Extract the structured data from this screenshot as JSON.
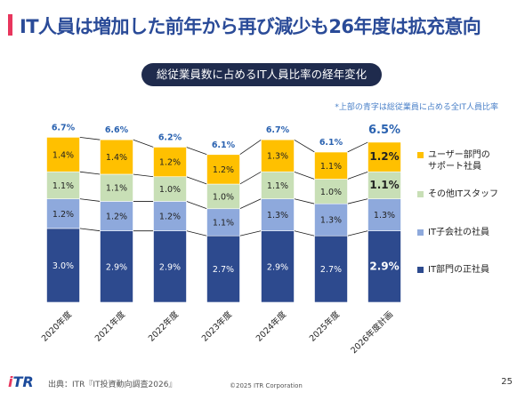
{
  "slide": {
    "title": "IT人員は増加した前年から再び減少も26年度は拡充意向",
    "subtitle": "総従業員数に占めるIT人員比率の経年変化",
    "note": "*上部の青字は総従業員に占める全IT人員比率",
    "footer": {
      "logo": "iTR",
      "source": "出典：ITR『IT投資動向調査2026』",
      "copyright": "©2025 ITR Corporation",
      "page": "25"
    }
  },
  "colors": {
    "accent": "#e8365d",
    "title": "#2a4b98",
    "total_label": "#2a62b0",
    "connector": "#1a1a1a"
  },
  "chart_data": {
    "type": "bar",
    "stacked": true,
    "categories": [
      "2020年度",
      "2021年度",
      "2022年度",
      "2023年度",
      "2024年度",
      "2025年度",
      "2026年度計画"
    ],
    "series": [
      {
        "name": "IT部門の正社員",
        "color": "#2d4a8e",
        "values": [
          3.0,
          2.9,
          2.9,
          2.7,
          2.9,
          2.7,
          2.9
        ],
        "labels": [
          "3.0%",
          "2.9%",
          "2.9%",
          "2.7%",
          "2.9%",
          "2.7%",
          "2.9%"
        ]
      },
      {
        "name": "IT子会社の社員",
        "color": "#8ea9dc",
        "values": [
          1.2,
          1.2,
          1.2,
          1.1,
          1.3,
          1.3,
          1.3
        ],
        "labels": [
          "1.2%",
          "1.2%",
          "1.2%",
          "1.1%",
          "1.3%",
          "1.3%",
          "1.3%"
        ]
      },
      {
        "name": "その他ITスタッフ",
        "color": "#c8dfb6",
        "values": [
          1.1,
          1.1,
          1.0,
          1.0,
          1.1,
          1.0,
          1.1
        ],
        "labels": [
          "1.1%",
          "1.1%",
          "1.0%",
          "1.0%",
          "1.1%",
          "1.0%",
          "1.1%"
        ]
      },
      {
        "name": "ユーザー部門の\nサポート社員",
        "color": "#ffc000",
        "values": [
          1.4,
          1.4,
          1.2,
          1.2,
          1.3,
          1.1,
          1.2
        ],
        "labels": [
          "1.4%",
          "1.4%",
          "1.2%",
          "1.2%",
          "1.3%",
          "1.1%",
          "1.2%"
        ]
      }
    ],
    "totals": [
      6.7,
      6.6,
      6.2,
      6.1,
      6.7,
      6.1,
      6.5
    ],
    "total_labels": [
      "6.7%",
      "6.6%",
      "6.2%",
      "6.1%",
      "6.7%",
      "6.1%",
      "6.5%"
    ],
    "emphasized_category": "2026年度計画",
    "legend_order": [
      "ユーザー部門の\nサポート社員",
      "その他ITスタッフ",
      "IT子会社の社員",
      "IT部門の正社員"
    ],
    "legend_position": "right"
  }
}
